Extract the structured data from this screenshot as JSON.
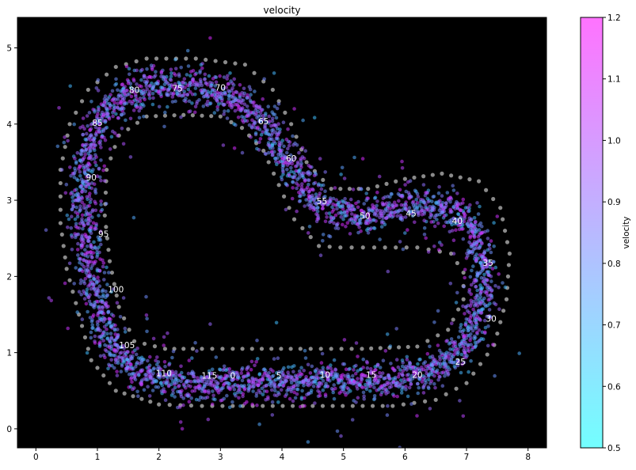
{
  "chart_data": {
    "type": "scatter",
    "title": "velocity",
    "xlabel": "",
    "ylabel": "",
    "xlim": [
      -0.3,
      8.3
    ],
    "ylim": [
      -0.25,
      5.4
    ],
    "xticks": [
      0,
      1,
      2,
      3,
      4,
      5,
      6,
      7,
      8
    ],
    "yticks": [
      0,
      1,
      2,
      3,
      4,
      5
    ],
    "background": "#000000",
    "colormap": {
      "name": "cool",
      "low_color": "#00ffff",
      "high_color": "#ff00ff"
    },
    "colorbar": {
      "label": "velocity",
      "range": [
        0.5,
        1.2
      ],
      "ticks": [
        "0.5",
        "0.6",
        "0.7",
        "0.8",
        "0.9",
        "1.0",
        "1.1",
        "1.2"
      ]
    },
    "track_centerline": [
      [
        3.2,
        0.6
      ],
      [
        4.0,
        0.6
      ],
      [
        5.0,
        0.62
      ],
      [
        6.0,
        0.65
      ],
      [
        6.5,
        0.75
      ],
      [
        6.9,
        1.0
      ],
      [
        7.2,
        1.5
      ],
      [
        7.3,
        2.0
      ],
      [
        7.2,
        2.5
      ],
      [
        6.9,
        2.85
      ],
      [
        6.4,
        2.95
      ],
      [
        5.9,
        2.88
      ],
      [
        5.3,
        2.78
      ],
      [
        4.7,
        2.9
      ],
      [
        4.3,
        3.25
      ],
      [
        3.95,
        3.7
      ],
      [
        3.6,
        4.1
      ],
      [
        3.2,
        4.38
      ],
      [
        2.6,
        4.48
      ],
      [
        2.0,
        4.5
      ],
      [
        1.5,
        4.42
      ],
      [
        1.1,
        4.15
      ],
      [
        0.85,
        3.75
      ],
      [
        0.75,
        3.2
      ],
      [
        0.78,
        2.6
      ],
      [
        0.9,
        2.05
      ],
      [
        1.05,
        1.55
      ],
      [
        1.2,
        1.1
      ],
      [
        1.5,
        0.8
      ],
      [
        2.0,
        0.65
      ],
      [
        2.6,
        0.6
      ],
      [
        3.2,
        0.6
      ]
    ],
    "waypoint_labels": [
      {
        "label": "0",
        "x": 3.2,
        "y": 0.7
      },
      {
        "label": "5",
        "x": 3.95,
        "y": 0.7
      },
      {
        "label": "10",
        "x": 4.7,
        "y": 0.71
      },
      {
        "label": "15",
        "x": 5.45,
        "y": 0.71
      },
      {
        "label": "20",
        "x": 6.2,
        "y": 0.71
      },
      {
        "label": "25",
        "x": 6.9,
        "y": 0.88
      },
      {
        "label": "30",
        "x": 7.4,
        "y": 1.45
      },
      {
        "label": "35",
        "x": 7.35,
        "y": 2.18
      },
      {
        "label": "40",
        "x": 6.85,
        "y": 2.73
      },
      {
        "label": "45",
        "x": 6.1,
        "y": 2.83
      },
      {
        "label": "50",
        "x": 5.35,
        "y": 2.8
      },
      {
        "label": "55",
        "x": 4.65,
        "y": 2.99
      },
      {
        "label": "60",
        "x": 4.15,
        "y": 3.55
      },
      {
        "label": "65",
        "x": 3.7,
        "y": 4.04
      },
      {
        "label": "70",
        "x": 3.0,
        "y": 4.48
      },
      {
        "label": "75",
        "x": 2.3,
        "y": 4.47
      },
      {
        "label": "80",
        "x": 1.6,
        "y": 4.45
      },
      {
        "label": "85",
        "x": 1.0,
        "y": 4.02
      },
      {
        "label": "90",
        "x": 0.9,
        "y": 3.3
      },
      {
        "label": "95",
        "x": 1.1,
        "y": 2.56
      },
      {
        "label": "100",
        "x": 1.3,
        "y": 1.83
      },
      {
        "label": "105",
        "x": 1.48,
        "y": 1.1
      },
      {
        "label": "110",
        "x": 2.08,
        "y": 0.73
      },
      {
        "label": "115",
        "x": 2.82,
        "y": 0.7
      }
    ],
    "outer_border": [
      [
        3.2,
        0.3
      ],
      [
        4.5,
        0.3
      ],
      [
        5.8,
        0.3
      ],
      [
        6.5,
        0.38
      ],
      [
        7.0,
        0.6
      ],
      [
        7.45,
        1.1
      ],
      [
        7.65,
        1.7
      ],
      [
        7.7,
        2.3
      ],
      [
        7.55,
        2.9
      ],
      [
        7.2,
        3.25
      ],
      [
        6.6,
        3.35
      ],
      [
        6.0,
        3.28
      ],
      [
        5.4,
        3.15
      ],
      [
        4.8,
        3.15
      ],
      [
        4.4,
        3.5
      ],
      [
        4.15,
        4.0
      ],
      [
        3.85,
        4.45
      ],
      [
        3.4,
        4.78
      ],
      [
        2.6,
        4.86
      ],
      [
        1.8,
        4.86
      ],
      [
        1.3,
        4.75
      ],
      [
        0.85,
        4.45
      ],
      [
        0.55,
        4.0
      ],
      [
        0.4,
        3.4
      ],
      [
        0.4,
        2.7
      ],
      [
        0.5,
        2.1
      ],
      [
        0.7,
        1.5
      ],
      [
        0.9,
        0.9
      ],
      [
        1.3,
        0.5
      ],
      [
        2.0,
        0.32
      ],
      [
        2.7,
        0.3
      ],
      [
        3.2,
        0.3
      ]
    ],
    "inner_border": [
      [
        3.2,
        1.05
      ],
      [
        4.3,
        1.05
      ],
      [
        5.3,
        1.05
      ],
      [
        6.2,
        1.08
      ],
      [
        6.7,
        1.3
      ],
      [
        6.95,
        1.7
      ],
      [
        6.95,
        2.05
      ],
      [
        6.75,
        2.3
      ],
      [
        6.2,
        2.38
      ],
      [
        5.5,
        2.38
      ],
      [
        4.95,
        2.38
      ],
      [
        4.6,
        2.4
      ],
      [
        4.2,
        2.75
      ],
      [
        3.95,
        3.2
      ],
      [
        3.7,
        3.65
      ],
      [
        3.35,
        3.95
      ],
      [
        3.0,
        4.1
      ],
      [
        2.4,
        4.12
      ],
      [
        1.8,
        4.1
      ],
      [
        1.35,
        3.85
      ],
      [
        1.15,
        3.4
      ],
      [
        1.12,
        2.8
      ],
      [
        1.2,
        2.2
      ],
      [
        1.35,
        1.6
      ],
      [
        1.6,
        1.15
      ],
      [
        2.1,
        1.05
      ],
      [
        2.7,
        1.05
      ],
      [
        3.2,
        1.05
      ]
    ]
  }
}
